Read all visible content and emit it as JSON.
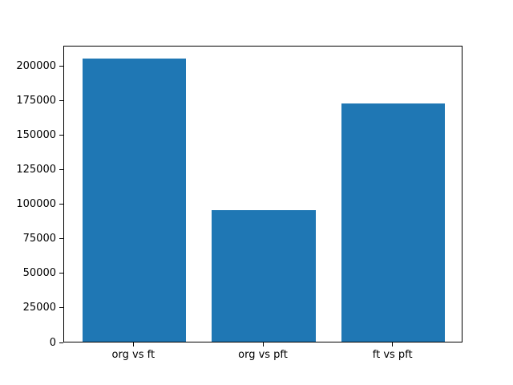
{
  "chart_data": {
    "type": "bar",
    "title": "",
    "xlabel": "",
    "ylabel": "",
    "categories": [
      "org vs ft",
      "org vs pft",
      "ft vs pft"
    ],
    "values": [
      204600,
      95000,
      172200
    ],
    "yticks": [
      0,
      25000,
      50000,
      75000,
      100000,
      125000,
      150000,
      175000,
      200000
    ],
    "ylim": [
      0,
      214500
    ],
    "xlim": [
      -0.54,
      2.54
    ],
    "bar_width_data_units": 0.8,
    "bar_color": "#1f77b4",
    "axis_color": "#000000",
    "background_color": "#ffffff",
    "grid": false,
    "legend": null
  }
}
